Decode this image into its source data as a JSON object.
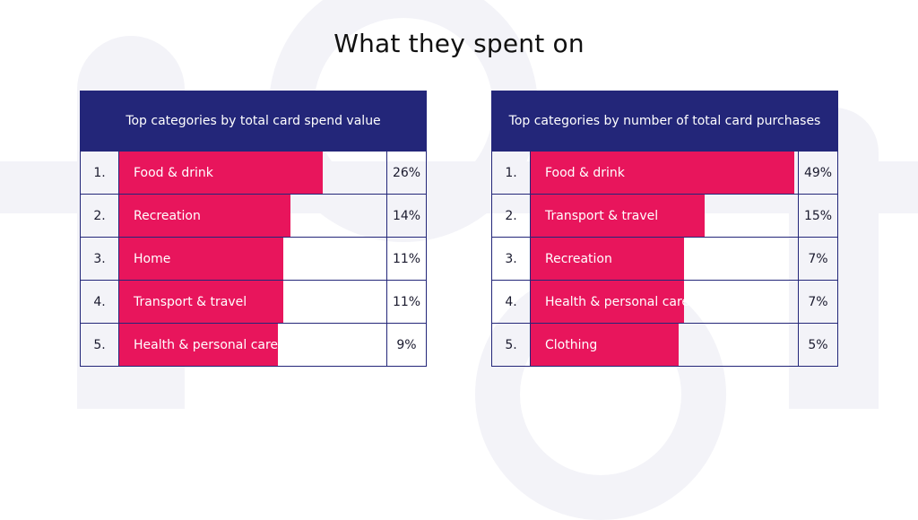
{
  "title": "What they spent on",
  "colors": {
    "header_bg": "#232679",
    "bar": "#e8155c",
    "text": "#111111"
  },
  "chart_data": [
    {
      "type": "bar",
      "title": "Top categories by total card spend value",
      "ranks": [
        "1.",
        "2.",
        "3.",
        "4.",
        "5."
      ],
      "categories": [
        "Food & drink",
        "Recreation",
        "Home",
        "Transport & travel",
        "Health & personal care"
      ],
      "values": [
        26,
        14,
        11,
        11,
        9
      ],
      "value_labels": [
        "26%",
        "14%",
        "11%",
        "11%",
        "9%"
      ]
    },
    {
      "type": "bar",
      "title": "Top categories by number of total card purchases",
      "ranks": [
        "1.",
        "2.",
        "3.",
        "4.",
        "5."
      ],
      "categories": [
        "Food & drink",
        "Transport & travel",
        "Recreation",
        "Health & personal care",
        "Clothing"
      ],
      "values": [
        49,
        15,
        7,
        7,
        5
      ],
      "value_labels": [
        "49%",
        "15%",
        "7%",
        "7%",
        "5%"
      ]
    }
  ]
}
